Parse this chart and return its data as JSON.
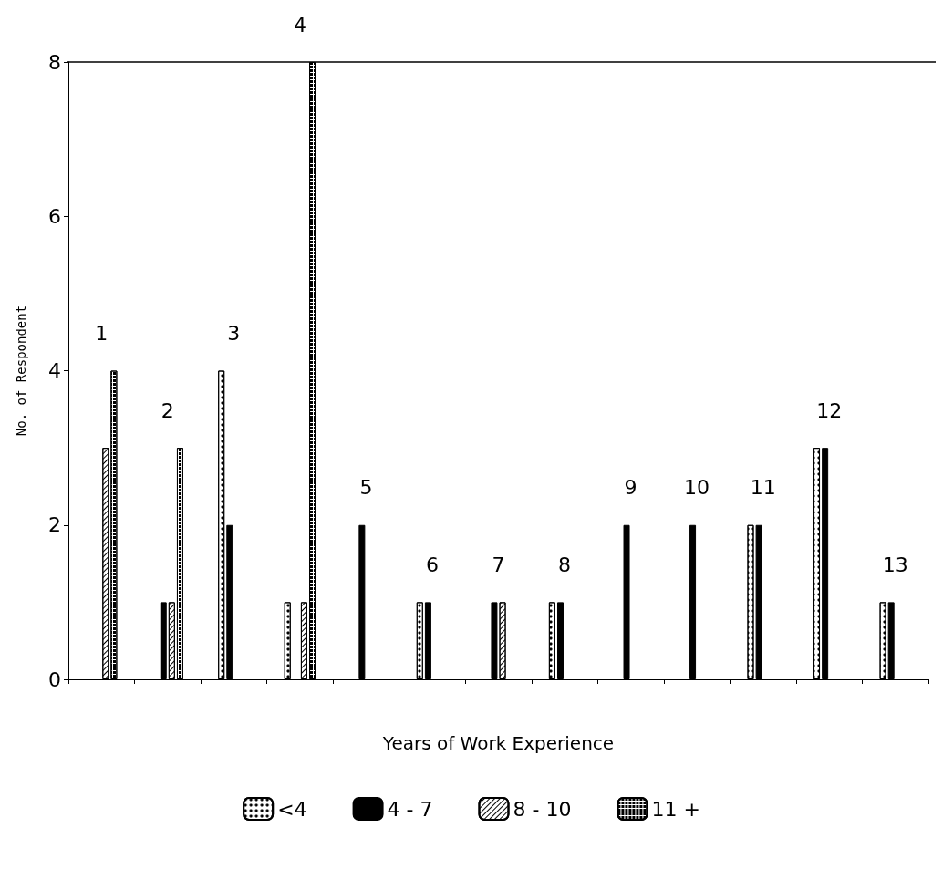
{
  "chart_data": {
    "type": "bar",
    "xlabel": "Years of Work Experience",
    "ylabel": "No. of Respondent",
    "categories": [
      "1",
      "2",
      "3",
      "4",
      "5",
      "6",
      "7",
      "8",
      "9",
      "10",
      "11",
      "12",
      "13"
    ],
    "series": [
      {
        "name": "<4",
        "color": "#ffffff",
        "values": [
          null,
          null,
          4,
          1,
          null,
          1,
          null,
          1,
          null,
          null,
          2,
          3,
          1
        ]
      },
      {
        "name": "4 - 7",
        "color": "#000000",
        "values": [
          null,
          1,
          2,
          null,
          2,
          1,
          1,
          1,
          2,
          2,
          2,
          3,
          1
        ]
      },
      {
        "name": "8 - 10",
        "color": "#ffffff",
        "values": [
          3,
          1,
          null,
          1,
          null,
          null,
          1,
          null,
          null,
          null,
          null,
          null,
          null
        ]
      },
      {
        "name": "11 +",
        "color": "#ffffff",
        "values": [
          4,
          3,
          null,
          8,
          null,
          null,
          null,
          null,
          null,
          null,
          null,
          null,
          null
        ]
      }
    ],
    "ylim": [
      0,
      8
    ],
    "yticks": [
      0,
      2,
      4,
      6,
      8
    ],
    "grid": false,
    "legend": "bottom"
  }
}
